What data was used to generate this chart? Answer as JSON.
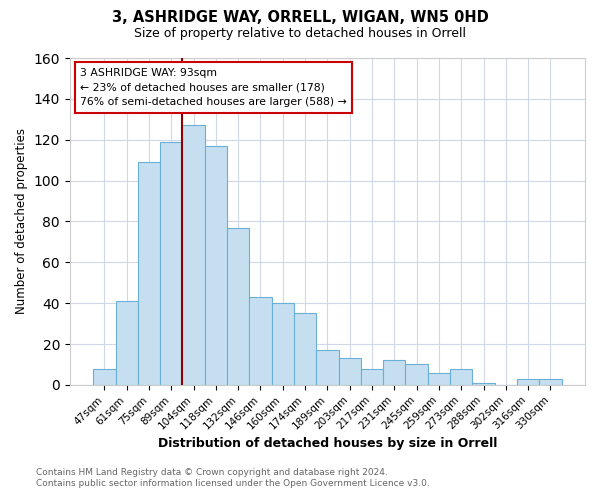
{
  "title": "3, ASHRIDGE WAY, ORRELL, WIGAN, WN5 0HD",
  "subtitle": "Size of property relative to detached houses in Orrell",
  "xlabel": "Distribution of detached houses by size in Orrell",
  "ylabel": "Number of detached properties",
  "bar_labels": [
    "47sqm",
    "61sqm",
    "75sqm",
    "89sqm",
    "104sqm",
    "118sqm",
    "132sqm",
    "146sqm",
    "160sqm",
    "174sqm",
    "189sqm",
    "203sqm",
    "217sqm",
    "231sqm",
    "245sqm",
    "259sqm",
    "273sqm",
    "288sqm",
    "302sqm",
    "316sqm",
    "330sqm"
  ],
  "bar_heights": [
    8,
    41,
    109,
    119,
    127,
    117,
    77,
    43,
    40,
    35,
    17,
    13,
    8,
    12,
    10,
    6,
    8,
    1,
    0,
    3,
    3
  ],
  "bar_color": "#c5dff0",
  "bar_edge_color": "#6aafd6",
  "ylim": [
    0,
    160
  ],
  "yticks": [
    0,
    20,
    40,
    60,
    80,
    100,
    120,
    140,
    160
  ],
  "red_line_index": 4,
  "annotation_line1": "3 ASHRIDGE WAY: 93sqm",
  "annotation_line2": "← 23% of detached houses are smaller (178)",
  "annotation_line3": "76% of semi-detached houses are larger (588) →",
  "annotation_box_color": "#ffffff",
  "annotation_box_edge": "#cc0000",
  "footer_line1": "Contains HM Land Registry data © Crown copyright and database right 2024.",
  "footer_line2": "Contains public sector information licensed under the Open Government Licence v3.0.",
  "bg_color": "#ffffff",
  "grid_color": "#d0d8e8"
}
